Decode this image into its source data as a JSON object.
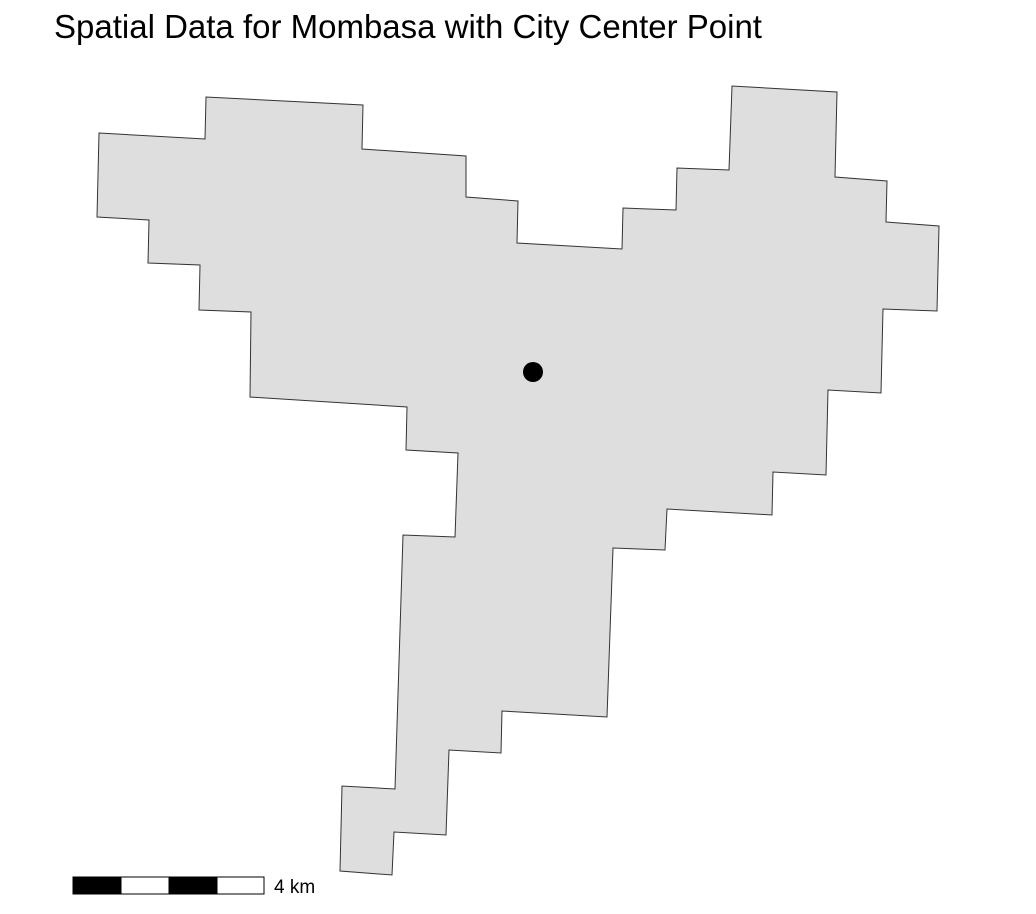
{
  "title": "Spatial Data for Mombasa with City Center Point",
  "city_boundary": {
    "name": "Mombasa",
    "fill_color": "#dedede",
    "stroke_color": "#333333"
  },
  "city_center": {
    "label": "City Center Point",
    "color": "#000000"
  },
  "scale_bar": {
    "label": "4 km",
    "segments": 4,
    "colors": [
      "#000000",
      "#ffffff"
    ]
  }
}
